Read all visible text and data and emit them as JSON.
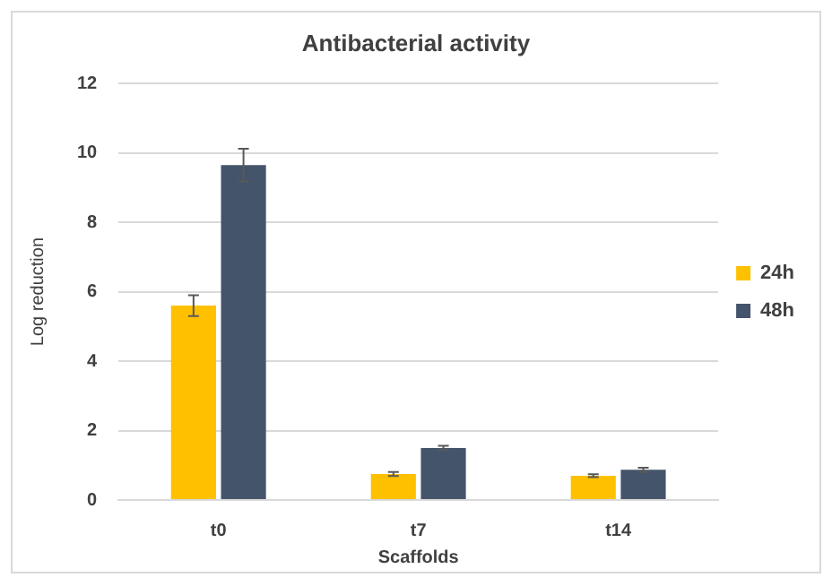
{
  "chart_data": {
    "type": "bar",
    "title": "Antibacterial activity",
    "xlabel": "Scaffolds",
    "ylabel": "Log reduction",
    "categories": [
      "t0",
      "t7",
      "t14"
    ],
    "series": [
      {
        "name": "24h",
        "color": "#ffc000",
        "values": [
          5.6,
          0.75,
          0.7
        ],
        "errors": [
          0.3,
          0.06,
          0.04
        ]
      },
      {
        "name": "48h",
        "color": "#44546a",
        "values": [
          9.65,
          1.5,
          0.87
        ],
        "errors": [
          0.47,
          0.06,
          0.06
        ]
      }
    ],
    "ylim": [
      0,
      12
    ],
    "yticks": [
      0,
      2,
      4,
      6,
      8,
      10,
      12
    ],
    "grid": "y",
    "legend": "right"
  }
}
